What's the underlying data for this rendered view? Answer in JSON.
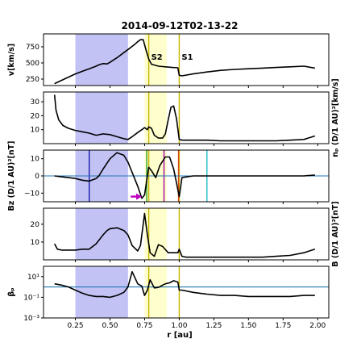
{
  "chart_data": {
    "type": "line",
    "title": "2014-09-12T02-13-22",
    "xlabel": "r [au]",
    "xlim": [
      0.02,
      2.08
    ],
    "xticks": [
      0.25,
      0.5,
      0.75,
      1.0,
      1.25,
      1.5,
      1.75,
      2.0
    ],
    "xtick_labels": [
      "0.25",
      "0.50",
      "0.75",
      "1.00",
      "1.25",
      "1.50",
      "1.75",
      "2.00"
    ],
    "regions": [
      {
        "kind": "blue",
        "x0": 0.25,
        "x1": 0.63,
        "color": "#aeaef2"
      },
      {
        "kind": "yellow",
        "x0": 0.75,
        "x1": 0.91,
        "color": "#ffffc4"
      }
    ],
    "shock_lines": [
      {
        "x": 0.78,
        "label": "S2",
        "color": "#c8b400"
      },
      {
        "x": 1.0,
        "label": "S1",
        "color": "#c8b400"
      }
    ],
    "panels": [
      {
        "id": "speed",
        "ylabel": "v[km/s]",
        "ylabel_side": "left",
        "yscale": "linear",
        "ylim": [
          150,
          950
        ],
        "yticks": [
          250,
          500,
          750
        ],
        "ytick_labels": [
          "250",
          "500",
          "750"
        ],
        "series": [
          {
            "x": [
              0.1,
              0.15,
              0.2,
              0.25,
              0.3,
              0.35,
              0.4,
              0.42,
              0.45,
              0.48,
              0.5,
              0.55,
              0.6,
              0.65,
              0.68,
              0.7,
              0.72,
              0.74,
              0.76,
              0.78,
              0.8,
              0.85,
              0.9,
              0.95,
              0.99,
              1.0,
              1.02,
              1.1,
              1.2,
              1.3,
              1.4,
              1.5,
              1.6,
              1.7,
              1.8,
              1.9,
              1.98
            ],
            "y": [
              180,
              230,
              280,
              330,
              370,
              410,
              450,
              470,
              490,
              485,
              510,
              580,
              660,
              740,
              790,
              830,
              860,
              860,
              700,
              560,
              480,
              450,
              440,
              430,
              425,
              310,
              300,
              330,
              360,
              385,
              400,
              410,
              420,
              430,
              440,
              450,
              420
            ]
          }
        ]
      },
      {
        "id": "density",
        "ylabel": "nₚ (D/1 AU)²[km/s]",
        "ylabel_side": "right",
        "yscale": "linear",
        "ylim": [
          0,
          37
        ],
        "yticks": [
          10,
          20,
          30
        ],
        "ytick_labels": [
          "10",
          "20",
          "30"
        ],
        "series": [
          {
            "x": [
              0.1,
              0.11,
              0.13,
              0.16,
              0.2,
              0.25,
              0.3,
              0.35,
              0.4,
              0.45,
              0.5,
              0.55,
              0.6,
              0.63,
              0.66,
              0.7,
              0.73,
              0.75,
              0.77,
              0.78,
              0.8,
              0.82,
              0.85,
              0.88,
              0.9,
              0.92,
              0.94,
              0.96,
              0.98,
              1.0,
              1.02,
              1.1,
              1.2,
              1.3,
              1.4,
              1.5,
              1.6,
              1.7,
              1.8,
              1.9,
              1.98
            ],
            "y": [
              35,
              24,
              17,
              13,
              11,
              9.5,
              8.5,
              7.5,
              6,
              7,
              6.5,
              5,
              3.5,
              3,
              5,
              8,
              10,
              11.5,
              10,
              12,
              11,
              6,
              4,
              4,
              7,
              17,
              26,
              27,
              18,
              3,
              2.5,
              2.5,
              2.5,
              2,
              2,
              2,
              2,
              2,
              2.5,
              3,
              5.5
            ]
          }
        ]
      },
      {
        "id": "bz",
        "ylabel": "Bz (D/1 AU)²[nT]",
        "ylabel_side": "left",
        "yscale": "linear",
        "ylim": [
          -15,
          15
        ],
        "yticks": [
          -10,
          0,
          10
        ],
        "ytick_labels": [
          "−10",
          "0",
          "10"
        ],
        "hline": 0,
        "vlines": [
          {
            "x": 0.35,
            "color": "#1a1aa8"
          },
          {
            "x": 0.765,
            "color": "#2ca02c"
          },
          {
            "x": 0.89,
            "color": "#a000a0"
          },
          {
            "x": 0.995,
            "color": "#d84a0f"
          },
          {
            "x": 1.2,
            "color": "#20b8c8"
          }
        ],
        "arrow": {
          "x": 0.65,
          "y": -12,
          "dx": 0.08,
          "color": "#c000c0"
        },
        "series": [
          {
            "x": [
              0.1,
              0.15,
              0.2,
              0.25,
              0.3,
              0.35,
              0.4,
              0.42,
              0.45,
              0.5,
              0.55,
              0.6,
              0.63,
              0.66,
              0.7,
              0.73,
              0.75,
              0.77,
              0.78,
              0.8,
              0.83,
              0.86,
              0.9,
              0.93,
              0.96,
              0.98,
              1.0,
              1.02,
              1.1,
              1.2,
              1.3,
              1.4,
              1.5,
              1.6,
              1.7,
              1.8,
              1.9,
              1.98
            ],
            "y": [
              0,
              -0.5,
              -1,
              -1.5,
              -2.5,
              -3,
              -1.5,
              0,
              4,
              10,
              13.5,
              12,
              8,
              2,
              -6,
              -13,
              -11,
              0,
              5,
              3,
              -1,
              6,
              11,
              11,
              4,
              -4,
              -12,
              -1,
              0,
              0,
              0,
              0,
              0,
              0,
              0,
              0,
              0,
              0.5
            ]
          }
        ]
      },
      {
        "id": "btotal",
        "ylabel": "B (D/1 AU)²[nT]",
        "ylabel_side": "right",
        "yscale": "linear",
        "ylim": [
          0,
          29
        ],
        "yticks": [
          10,
          20
        ],
        "ytick_labels": [
          "10",
          "20"
        ],
        "series": [
          {
            "x": [
              0.1,
              0.12,
              0.15,
              0.2,
              0.25,
              0.3,
              0.35,
              0.4,
              0.45,
              0.48,
              0.5,
              0.55,
              0.6,
              0.63,
              0.66,
              0.7,
              0.72,
              0.74,
              0.75,
              0.77,
              0.79,
              0.82,
              0.85,
              0.88,
              0.92,
              0.96,
              0.99,
              1.0,
              1.02,
              1.05,
              1.1,
              1.2,
              1.3,
              1.4,
              1.5,
              1.6,
              1.7,
              1.8,
              1.9,
              1.98
            ],
            "y": [
              9,
              6,
              5.5,
              5.5,
              5.5,
              6,
              6,
              9,
              14,
              16.5,
              17.5,
              18,
              16.5,
              14,
              8,
              5,
              8,
              20,
              26,
              14,
              4,
              2,
              8.5,
              7.5,
              4,
              4,
              4,
              6,
              2,
              1.5,
              1.5,
              1.5,
              1.5,
              1.5,
              1.5,
              1.5,
              2,
              2.5,
              4,
              6
            ]
          }
        ]
      },
      {
        "id": "beta",
        "ylabel": "βₚ",
        "ylabel_side": "left",
        "yscale": "log",
        "ylim": [
          0.001,
          100
        ],
        "yticks": [
          0.001,
          0.1,
          10
        ],
        "ytick_labels": [
          "10⁻³",
          "10⁻¹",
          "10¹"
        ],
        "hline": 1,
        "series": [
          {
            "x": [
              0.1,
              0.15,
              0.2,
              0.25,
              0.3,
              0.35,
              0.4,
              0.45,
              0.5,
              0.55,
              0.6,
              0.63,
              0.66,
              0.7,
              0.73,
              0.75,
              0.77,
              0.79,
              0.82,
              0.85,
              0.88,
              0.9,
              0.93,
              0.96,
              0.99,
              1.0,
              1.02,
              1.1,
              1.2,
              1.3,
              1.4,
              1.5,
              1.6,
              1.7,
              1.8,
              1.9,
              1.98
            ],
            "y": [
              2,
              1.5,
              1,
              0.5,
              0.25,
              0.15,
              0.12,
              0.12,
              0.1,
              0.15,
              0.3,
              1,
              30,
              2,
              1.2,
              0.15,
              0.5,
              5,
              0.8,
              0.9,
              1.5,
              2,
              2.5,
              4,
              3,
              0.5,
              0.5,
              0.3,
              0.2,
              0.15,
              0.15,
              0.12,
              0.12,
              0.12,
              0.12,
              0.15,
              0.15
            ]
          }
        ]
      }
    ]
  }
}
